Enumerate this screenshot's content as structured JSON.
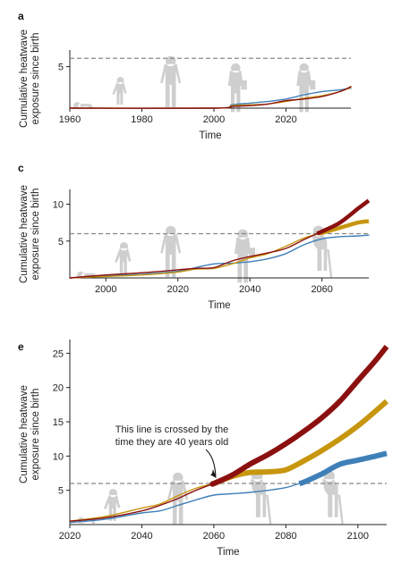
{
  "colors": {
    "series_low": "#3f7fb8",
    "series_mid": "#c7960f",
    "series_high": "#8b1010",
    "threshold": "#888888",
    "silhouette": "#cfcfcf"
  },
  "icons": [
    "baby-crawling-silhouette",
    "child-with-ball-silhouette",
    "walking-person-silhouette",
    "person-with-bag-silhouette",
    "elderly-person-with-cane-silhouette"
  ],
  "chart_data": [
    {
      "panel": "a",
      "type": "line",
      "xlabel": "Time",
      "ylabel": [
        "Cumulative heatwave",
        "exposure since birth"
      ],
      "xlim": [
        1960,
        2038
      ],
      "ylim": [
        0,
        7
      ],
      "xticks": [
        1960,
        1980,
        2000,
        2020
      ],
      "yticks": [
        5
      ],
      "threshold": 6,
      "series": [
        {
          "color_key": "series_low",
          "x": [
            1960,
            2000,
            2005,
            2010,
            2015,
            2020,
            2025,
            2030,
            2035,
            2038
          ],
          "y": [
            0,
            0,
            0.4,
            0.6,
            0.8,
            1.1,
            1.6,
            2.0,
            2.2,
            2.4
          ]
        },
        {
          "color_key": "series_mid",
          "x": [
            1960,
            2000,
            2005,
            2010,
            2015,
            2020,
            2025,
            2030,
            2035,
            2038
          ],
          "y": [
            0,
            0,
            0.3,
            0.4,
            0.5,
            0.8,
            1.2,
            1.5,
            2.0,
            2.5
          ]
        },
        {
          "color_key": "series_high",
          "x": [
            1960,
            2000,
            2005,
            2010,
            2015,
            2020,
            2025,
            2030,
            2035,
            2038
          ],
          "y": [
            0,
            0,
            0.2,
            0.3,
            0.5,
            0.9,
            1.1,
            1.4,
            2.0,
            2.6
          ]
        }
      ]
    },
    {
      "panel": "c",
      "type": "line",
      "xlabel": "Time",
      "ylabel": [
        "Cumulative heatwave",
        "exposure since birth"
      ],
      "xlim": [
        1990,
        2073
      ],
      "ylim": [
        0,
        12
      ],
      "xticks": [
        2000,
        2020,
        2040,
        2060
      ],
      "yticks": [
        5,
        10
      ],
      "threshold": 6,
      "series": [
        {
          "color_key": "series_low",
          "x": [
            1990,
            2000,
            2010,
            2020,
            2025,
            2030,
            2035,
            2040,
            2045,
            2050,
            2055,
            2060,
            2065,
            2070,
            2073
          ],
          "y": [
            0,
            0.3,
            0.5,
            0.9,
            1.4,
            1.9,
            2.0,
            2.2,
            2.6,
            3.3,
            4.5,
            5.3,
            5.6,
            5.7,
            5.8
          ]
        },
        {
          "color_key": "series_mid",
          "x": [
            1990,
            2000,
            2010,
            2020,
            2025,
            2030,
            2035,
            2040,
            2045,
            2050,
            2055,
            2060,
            2065,
            2070,
            2073
          ],
          "y": [
            0,
            0.2,
            0.4,
            0.8,
            1.2,
            1.3,
            1.9,
            2.7,
            3.3,
            4.3,
            5.4,
            6.1,
            6.8,
            7.5,
            7.7
          ]
        },
        {
          "color_key": "series_high",
          "x": [
            1990,
            2000,
            2010,
            2020,
            2025,
            2030,
            2035,
            2040,
            2045,
            2050,
            2055,
            2060,
            2065,
            2070,
            2073
          ],
          "y": [
            0,
            0.4,
            0.7,
            1.1,
            1.3,
            1.4,
            2.3,
            2.9,
            3.4,
            4.0,
            5.2,
            6.3,
            7.5,
            9.4,
            10.5
          ]
        }
      ]
    },
    {
      "panel": "e",
      "type": "line",
      "xlabel": "Time",
      "ylabel": [
        "Cumulative heatwave",
        "exposure since birth"
      ],
      "xlim": [
        2020,
        2108
      ],
      "ylim": [
        0,
        27
      ],
      "xticks": [
        2020,
        2040,
        2060,
        2080,
        2100
      ],
      "yticks": [
        5,
        10,
        15,
        20,
        25
      ],
      "threshold": 6,
      "annotation": "This line is crossed by the time they are 40 years old",
      "series": [
        {
          "color_key": "series_low",
          "x": [
            2020,
            2030,
            2040,
            2045,
            2050,
            2055,
            2060,
            2065,
            2070,
            2075,
            2080,
            2085,
            2090,
            2095,
            2100,
            2105,
            2108
          ],
          "y": [
            0.3,
            0.8,
            1.7,
            2.0,
            2.8,
            3.6,
            4.3,
            4.5,
            4.7,
            5.0,
            5.4,
            6.2,
            7.4,
            8.8,
            9.4,
            10.0,
            10.4
          ]
        },
        {
          "color_key": "series_mid",
          "x": [
            2020,
            2030,
            2040,
            2045,
            2050,
            2055,
            2060,
            2065,
            2070,
            2075,
            2080,
            2085,
            2090,
            2095,
            2100,
            2105,
            2108
          ],
          "y": [
            0.5,
            1.2,
            2.4,
            3.0,
            4.2,
            5.3,
            6.0,
            7.0,
            7.6,
            7.7,
            8.0,
            9.3,
            10.8,
            12.5,
            14.4,
            16.6,
            18.0
          ]
        },
        {
          "color_key": "series_high",
          "x": [
            2020,
            2030,
            2040,
            2045,
            2050,
            2055,
            2060,
            2065,
            2070,
            2075,
            2080,
            2085,
            2090,
            2095,
            2100,
            2105,
            2108
          ],
          "y": [
            0.5,
            1.0,
            2.0,
            2.8,
            3.8,
            5.0,
            6.0,
            7.2,
            8.8,
            10.2,
            11.8,
            13.6,
            15.6,
            18.0,
            21.0,
            24.0,
            26.0
          ]
        }
      ]
    }
  ]
}
